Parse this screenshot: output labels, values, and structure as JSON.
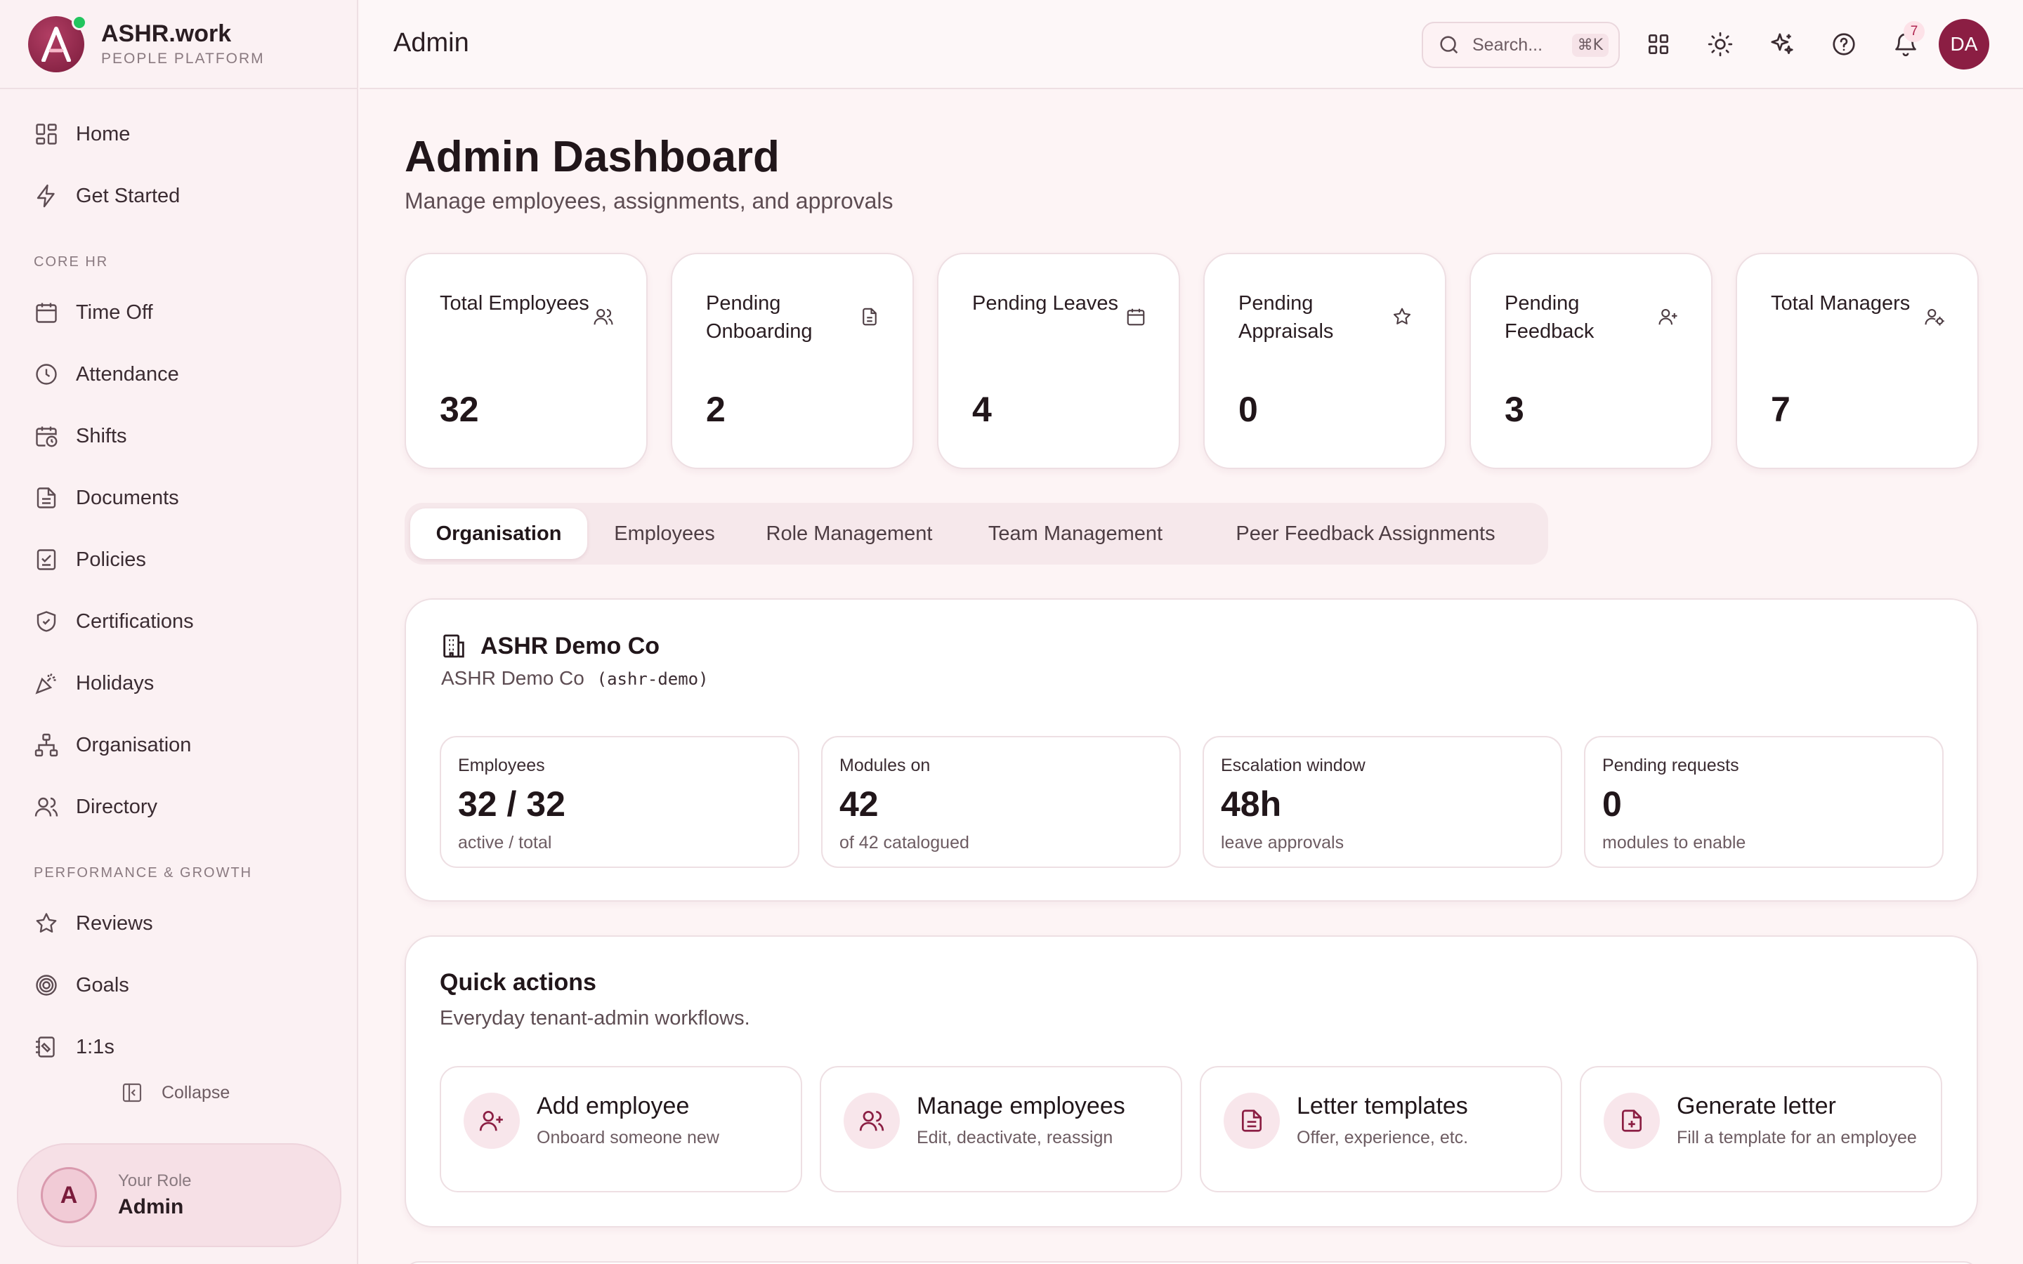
{
  "brand": {
    "name": "ASHR.work",
    "subtitle": "PEOPLE PLATFORM",
    "logo_letter": "A"
  },
  "header": {
    "title": "Admin",
    "search_placeholder": "Search...",
    "search_shortcut": "⌘K",
    "notification_count": "7",
    "user_initials": "DA"
  },
  "sidebar": {
    "top_items": [
      {
        "label": "Home",
        "icon": "grid-icon"
      },
      {
        "label": "Get Started",
        "icon": "bolt-icon"
      }
    ],
    "sections": [
      {
        "title": "CORE HR",
        "items": [
          {
            "label": "Time Off",
            "icon": "calendar-icon"
          },
          {
            "label": "Attendance",
            "icon": "clock-icon"
          },
          {
            "label": "Shifts",
            "icon": "calendar-clock-icon"
          },
          {
            "label": "Documents",
            "icon": "document-icon"
          },
          {
            "label": "Policies",
            "icon": "checklist-icon"
          },
          {
            "label": "Certifications",
            "icon": "shield-check-icon"
          },
          {
            "label": "Holidays",
            "icon": "party-icon"
          },
          {
            "label": "Organisation",
            "icon": "org-chart-icon"
          },
          {
            "label": "Directory",
            "icon": "users-icon"
          }
        ]
      },
      {
        "title": "PERFORMANCE & GROWTH",
        "items": [
          {
            "label": "Reviews",
            "icon": "star-icon"
          },
          {
            "label": "Goals",
            "icon": "target-icon"
          },
          {
            "label": "1:1s",
            "icon": "notebook-icon"
          }
        ]
      }
    ],
    "collapse_label": "Collapse",
    "role": {
      "label": "Your Role",
      "value": "Admin",
      "avatar_letter": "A"
    }
  },
  "page": {
    "title": "Admin Dashboard",
    "subtitle": "Manage employees, assignments, and approvals"
  },
  "stats": [
    {
      "label": "Total Employees",
      "value": "32",
      "icon": "users-icon"
    },
    {
      "label": "Pending Onboarding",
      "value": "2",
      "icon": "file-icon"
    },
    {
      "label": "Pending Leaves",
      "value": "4",
      "icon": "calendar-icon"
    },
    {
      "label": "Pending Appraisals",
      "value": "0",
      "icon": "star-icon"
    },
    {
      "label": "Pending Feedback",
      "value": "3",
      "icon": "user-plus-icon"
    },
    {
      "label": "Total Managers",
      "value": "7",
      "icon": "user-cog-icon"
    }
  ],
  "tabs": [
    {
      "label": "Organisation",
      "active": true
    },
    {
      "label": "Employees",
      "active": false
    },
    {
      "label": "Role Management",
      "active": false
    },
    {
      "label": "Team Management",
      "active": false
    },
    {
      "label": "Peer Feedback Assignments",
      "active": false
    }
  ],
  "organisation": {
    "name": "ASHR Demo Co",
    "subname": "ASHR Demo Co",
    "slug": "(ashr-demo)",
    "metrics": [
      {
        "label": "Employees",
        "value": "32 / 32",
        "note": "active / total"
      },
      {
        "label": "Modules on",
        "value": "42",
        "note": "of 42 catalogued"
      },
      {
        "label": "Escalation window",
        "value": "48h",
        "note": "leave approvals"
      },
      {
        "label": "Pending requests",
        "value": "0",
        "note": "modules to enable"
      }
    ]
  },
  "quick_actions": {
    "title": "Quick actions",
    "subtitle": "Everyday tenant-admin workflows.",
    "items": [
      {
        "name": "Add employee",
        "desc": "Onboard someone new",
        "icon": "user-plus-icon"
      },
      {
        "name": "Manage employees",
        "desc": "Edit, deactivate, reassign",
        "icon": "users-icon"
      },
      {
        "name": "Letter templates",
        "desc": "Offer, experience, etc.",
        "icon": "document-icon"
      },
      {
        "name": "Generate letter",
        "desc": "Fill a template for an employee",
        "icon": "file-plus-icon"
      }
    ]
  },
  "colors": {
    "accent": "#8b1e43",
    "background": "#fdf4f5",
    "online": "#22c55e"
  }
}
